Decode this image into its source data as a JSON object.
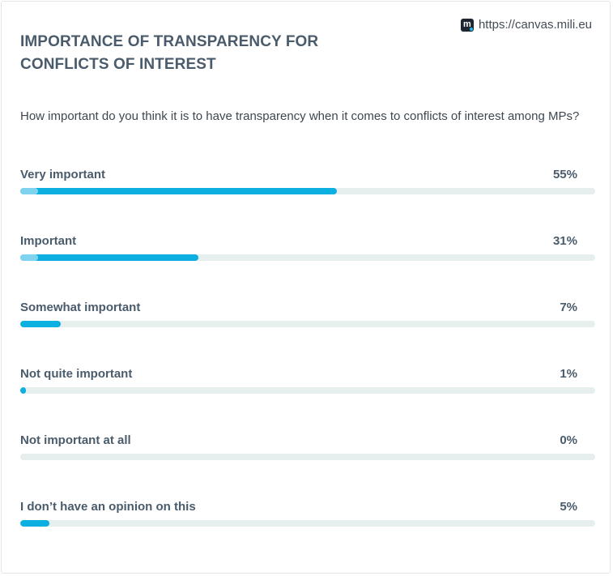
{
  "source": {
    "url": "https://canvas.mili.eu",
    "icon": "mili-logo-icon"
  },
  "chart_data": {
    "type": "bar",
    "orientation": "horizontal",
    "title": "IMPORTANCE OF TRANSPARENCY FOR CONFLICTS OF INTEREST",
    "question": "How important do you think it is to have transparency when it comes to conflicts of interest among MPs?",
    "categories": [
      "Very important",
      "Important",
      "Somewhat important",
      "Not quite important",
      "Not important at all",
      "I don’t have an opinion on this"
    ],
    "values": [
      55,
      31,
      7,
      1,
      0,
      5
    ],
    "value_labels": [
      "55%",
      "31%",
      "7%",
      "1%",
      "0%",
      "5%"
    ],
    "xlim": [
      0,
      100
    ],
    "unit": "%",
    "grid": false,
    "colors": {
      "bar": "#0cb0e0",
      "bar_start": "#7fd3ef",
      "track": "#e6efed"
    }
  }
}
